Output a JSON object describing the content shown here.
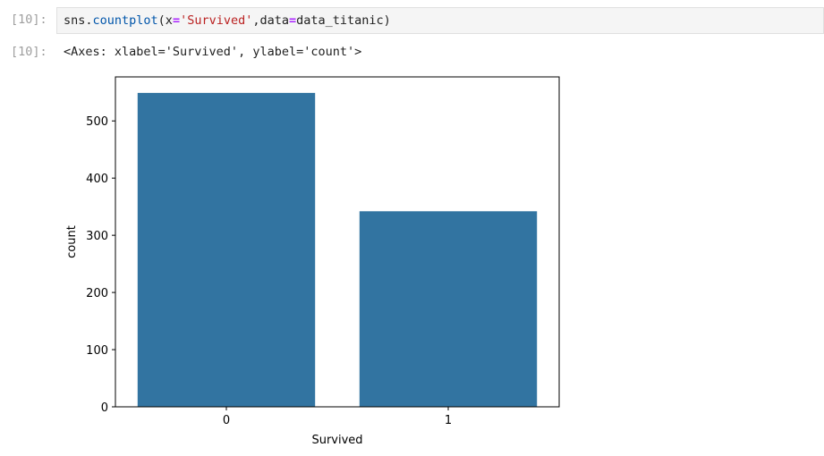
{
  "cell": {
    "input_prompt": "[10]:",
    "output_prompt": "[10]:",
    "code_tokens": [
      {
        "t": "sns.",
        "c": ""
      },
      {
        "t": "countplot",
        "c": "fn"
      },
      {
        "t": "(x",
        "c": ""
      },
      {
        "t": "=",
        "c": "op"
      },
      {
        "t": "'Survived'",
        "c": "str"
      },
      {
        "t": ",data",
        "c": ""
      },
      {
        "t": "=",
        "c": "op"
      },
      {
        "t": "data_titanic)",
        "c": ""
      }
    ],
    "output_text": "<Axes: xlabel='Survived', ylabel='count'>"
  },
  "chart_data": {
    "type": "bar",
    "categories": [
      "0",
      "1"
    ],
    "values": [
      549,
      342
    ],
    "xlabel": "Survived",
    "ylabel": "count",
    "ylim": [
      0,
      577
    ],
    "yticks": [
      0,
      100,
      200,
      300,
      400,
      500
    ],
    "grid": false,
    "bar_color": "#3274a1"
  }
}
